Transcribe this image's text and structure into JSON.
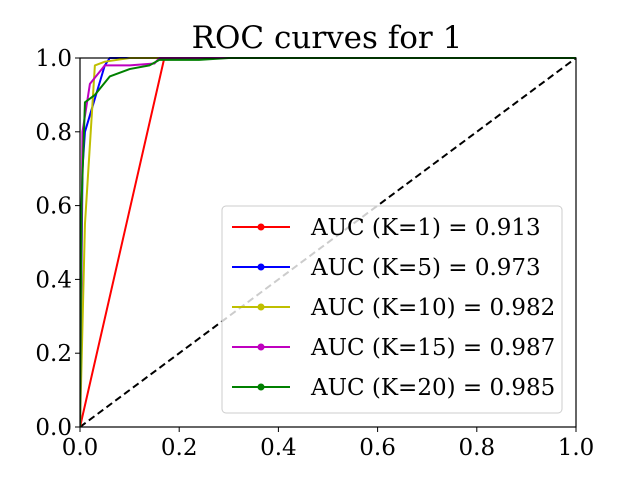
{
  "chart_data": {
    "type": "line",
    "title": "ROC curves for 1",
    "xlabel": "",
    "ylabel": "",
    "xlim": [
      0.0,
      1.0
    ],
    "ylim": [
      0.0,
      1.0
    ],
    "grid": false,
    "legend_position": "lower-right",
    "x_tick_labels": [
      "0.0",
      "0.2",
      "0.4",
      "0.6",
      "0.8",
      "1.0"
    ],
    "y_tick_labels": [
      "0.0",
      "0.2",
      "0.4",
      "0.6",
      "0.8",
      "1.0"
    ],
    "x_ticks": [
      0.0,
      0.2,
      0.4,
      0.6,
      0.8,
      1.0
    ],
    "y_ticks": [
      0.0,
      0.2,
      0.4,
      0.6,
      0.8,
      1.0
    ],
    "chance_line": {
      "x": [
        0.0,
        1.0
      ],
      "y": [
        0.0,
        1.0
      ],
      "color": "#000000",
      "style": "dashed"
    },
    "series": [
      {
        "name": "AUC (K=1) = 0.913",
        "color": "#ff0000",
        "x": [
          0.0,
          0.17,
          1.0
        ],
        "y": [
          0.0,
          1.0,
          1.0
        ]
      },
      {
        "name": "AUC (K=5) = 0.973",
        "color": "#0000ff",
        "x": [
          0.0,
          0.005,
          0.01,
          0.05,
          0.06,
          1.0
        ],
        "y": [
          0.0,
          0.7,
          0.8,
          0.98,
          1.0,
          1.0
        ]
      },
      {
        "name": "AUC (K=10) = 0.982",
        "color": "#bfbf00",
        "x": [
          0.0,
          0.01,
          0.03,
          0.05,
          0.1,
          1.0
        ],
        "y": [
          0.0,
          0.55,
          0.98,
          0.99,
          1.0,
          1.0
        ]
      },
      {
        "name": "AUC (K=15) = 0.987",
        "color": "#bf00bf",
        "x": [
          0.0,
          0.005,
          0.02,
          0.05,
          0.1,
          0.15,
          0.16,
          1.0
        ],
        "y": [
          0.0,
          0.8,
          0.93,
          0.98,
          0.98,
          0.985,
          1.0,
          1.0
        ]
      },
      {
        "name": "AUC (K=20) = 0.985",
        "color": "#008000",
        "x": [
          0.0,
          0.003,
          0.01,
          0.03,
          0.06,
          0.1,
          0.14,
          0.16,
          0.24,
          0.3,
          1.0
        ],
        "y": [
          0.0,
          0.6,
          0.88,
          0.9,
          0.95,
          0.97,
          0.98,
          0.995,
          0.995,
          1.0,
          1.0
        ]
      }
    ]
  }
}
